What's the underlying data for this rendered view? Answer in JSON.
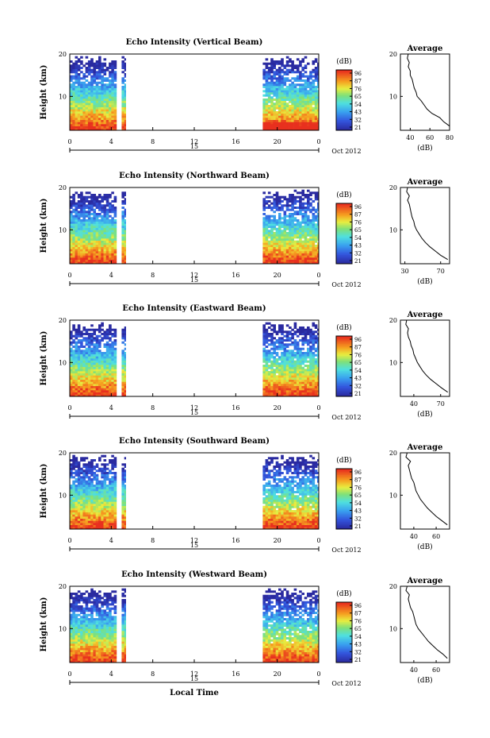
{
  "figure": {
    "date_label": "Oct 2012",
    "xlabel": "Local Time",
    "ylabel": "Height (km)",
    "cbar_unit": "(dB)",
    "cbar_ticks": [
      "96",
      "87",
      "76",
      "65",
      "54",
      "43",
      "32",
      "21"
    ],
    "avg_title": "Average",
    "avg_xlabel": "(dB)"
  },
  "chart_data": [
    {
      "type": "heatmap",
      "title": "Echo Intensity (Vertical Beam)",
      "xlabel": "",
      "ylabel": "Height (km)",
      "x_ticks": [
        "0",
        "4",
        "8",
        "12",
        "16",
        "20",
        "0"
      ],
      "x_day_label": "15",
      "y_ticks": [
        "20",
        "10"
      ],
      "ylim": [
        2,
        20
      ],
      "data_segments_hours": [
        [
          0,
          4.5
        ],
        [
          5.0,
          5.4
        ],
        [
          18.6,
          24
        ]
      ],
      "colorbar_db": [
        21,
        32,
        43,
        54,
        65,
        76,
        87,
        96
      ],
      "profile": {
        "xlim": [
          30,
          80
        ],
        "x_ticks": [
          "40",
          "60",
          "80"
        ],
        "ylim": [
          2,
          20
        ],
        "y_ticks": [
          "20",
          "10"
        ],
        "height_km": [
          3,
          4,
          5,
          6,
          7,
          8,
          9,
          10,
          11,
          12,
          13,
          14,
          15,
          16,
          17,
          18,
          19,
          20
        ],
        "avg_db": [
          80,
          74,
          70,
          62,
          57,
          54,
          51,
          47,
          46,
          44,
          43,
          42,
          40,
          40,
          38,
          39,
          37,
          38
        ]
      }
    },
    {
      "type": "heatmap",
      "title": "Echo Intensity (Northward Beam)",
      "xlabel": "",
      "ylabel": "Height (km)",
      "x_ticks": [
        "0",
        "4",
        "8",
        "12",
        "16",
        "20",
        "0"
      ],
      "x_day_label": "15",
      "y_ticks": [
        "20",
        "10"
      ],
      "ylim": [
        2,
        20
      ],
      "data_segments_hours": [
        [
          0,
          4.5
        ],
        [
          5.0,
          5.4
        ],
        [
          18.6,
          24
        ]
      ],
      "colorbar_db": [
        21,
        32,
        43,
        54,
        65,
        76,
        87,
        96
      ],
      "profile": {
        "xlim": [
          25,
          80
        ],
        "x_ticks": [
          "30",
          "70"
        ],
        "ylim": [
          2,
          20
        ],
        "y_ticks": [
          "20",
          "10"
        ],
        "height_km": [
          3,
          4,
          5,
          6,
          7,
          8,
          9,
          10,
          11,
          12,
          13,
          14,
          15,
          16,
          17,
          18,
          19,
          20
        ],
        "avg_db": [
          78,
          70,
          64,
          58,
          53,
          49,
          46,
          43,
          41,
          40,
          38,
          37,
          36,
          35,
          33,
          35,
          32,
          33
        ]
      }
    },
    {
      "type": "heatmap",
      "title": "Echo Intensity (Eastward Beam)",
      "xlabel": "",
      "ylabel": "Height (km)",
      "x_ticks": [
        "0",
        "4",
        "8",
        "12",
        "16",
        "20",
        "0"
      ],
      "x_day_label": "15",
      "y_ticks": [
        "20",
        "10"
      ],
      "ylim": [
        2,
        20
      ],
      "data_segments_hours": [
        [
          0,
          4.5
        ],
        [
          5.0,
          5.4
        ],
        [
          18.6,
          24
        ]
      ],
      "colorbar_db": [
        21,
        32,
        43,
        54,
        65,
        76,
        87,
        96
      ],
      "profile": {
        "xlim": [
          25,
          80
        ],
        "x_ticks": [
          "40",
          "70"
        ],
        "ylim": [
          2,
          20
        ],
        "y_ticks": [
          "20",
          "10"
        ],
        "height_km": [
          3,
          4,
          5,
          6,
          7,
          8,
          9,
          10,
          11,
          12,
          13,
          14,
          15,
          16,
          17,
          18,
          19,
          20
        ],
        "avg_db": [
          78,
          71,
          65,
          59,
          54,
          50,
          47,
          44,
          42,
          40,
          39,
          37,
          36,
          34,
          33,
          34,
          31,
          32
        ]
      }
    },
    {
      "type": "heatmap",
      "title": "Echo Intensity (Southward Beam)",
      "xlabel": "",
      "ylabel": "Height (km)",
      "x_ticks": [
        "0",
        "4",
        "8",
        "12",
        "16",
        "20",
        "0"
      ],
      "x_day_label": "15",
      "y_ticks": [
        "20",
        "10"
      ],
      "ylim": [
        2,
        20
      ],
      "data_segments_hours": [
        [
          0,
          4.5
        ],
        [
          5.0,
          5.4
        ],
        [
          18.6,
          24
        ]
      ],
      "colorbar_db": [
        21,
        32,
        43,
        54,
        65,
        76,
        87,
        96
      ],
      "profile": {
        "xlim": [
          28,
          72
        ],
        "x_ticks": [
          "40",
          "60"
        ],
        "ylim": [
          2,
          20
        ],
        "y_ticks": [
          "20",
          "10"
        ],
        "height_km": [
          3,
          4,
          5,
          6,
          7,
          8,
          9,
          10,
          11,
          12,
          13,
          14,
          15,
          16,
          17,
          18,
          19,
          20
        ],
        "avg_db": [
          70,
          65,
          60,
          56,
          52,
          49,
          46,
          44,
          42,
          41,
          40,
          38,
          37,
          36,
          35,
          37,
          33,
          34
        ]
      }
    },
    {
      "type": "heatmap",
      "title": "Echo Intensity (Westward Beam)",
      "xlabel": "Local Time",
      "ylabel": "Height (km)",
      "x_ticks": [
        "0",
        "4",
        "8",
        "12",
        "16",
        "20",
        "0"
      ],
      "x_day_label": "15",
      "y_ticks": [
        "20",
        "10"
      ],
      "ylim": [
        2,
        20
      ],
      "data_segments_hours": [
        [
          0,
          4.5
        ],
        [
          5.0,
          5.4
        ],
        [
          18.6,
          24
        ]
      ],
      "colorbar_db": [
        21,
        32,
        43,
        54,
        65,
        76,
        87,
        96
      ],
      "profile": {
        "xlim": [
          28,
          72
        ],
        "x_ticks": [
          "40",
          "60"
        ],
        "ylim": [
          2,
          20
        ],
        "y_ticks": [
          "20",
          "10"
        ],
        "height_km": [
          3,
          4,
          5,
          6,
          7,
          8,
          9,
          10,
          11,
          12,
          13,
          14,
          15,
          16,
          17,
          18,
          19,
          20
        ],
        "avg_db": [
          70,
          66,
          61,
          57,
          53,
          50,
          47,
          44,
          42,
          41,
          40,
          39,
          37,
          36,
          35,
          36,
          33,
          34
        ]
      }
    }
  ]
}
